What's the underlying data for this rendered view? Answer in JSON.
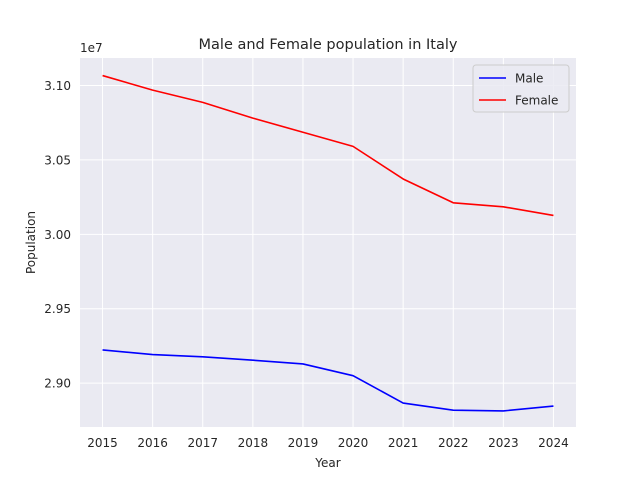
{
  "chart_data": {
    "type": "line",
    "title": "Male and Female population in Italy",
    "xlabel": "Year",
    "ylabel": "Population",
    "y_offset_label": "1e7",
    "x": [
      2015,
      2016,
      2017,
      2018,
      2019,
      2020,
      2021,
      2022,
      2023,
      2024
    ],
    "x_ticks": [
      "2015",
      "2016",
      "2017",
      "2018",
      "2019",
      "2020",
      "2021",
      "2022",
      "2023",
      "2024"
    ],
    "y_ticks": [
      {
        "value": 2.9,
        "label": "2.90"
      },
      {
        "value": 2.95,
        "label": "2.95"
      },
      {
        "value": 3.0,
        "label": "3.00"
      },
      {
        "value": 3.05,
        "label": "3.05"
      },
      {
        "value": 3.1,
        "label": "3.10"
      }
    ],
    "xlim": [
      2014.55,
      2024.45
    ],
    "ylim": [
      2.8705,
      3.1185
    ],
    "grid": true,
    "legend_position": "top-right",
    "series": [
      {
        "name": "Male",
        "color": "#0000ff",
        "values": [
          2.9223,
          2.9192,
          2.9177,
          2.9154,
          2.9129,
          2.905,
          2.8866,
          2.8818,
          2.8813,
          2.8846
        ]
      },
      {
        "name": "Female",
        "color": "#ff0000",
        "values": [
          3.1067,
          3.0969,
          3.0887,
          3.0781,
          3.0686,
          3.0591,
          3.0372,
          3.0212,
          3.0185,
          3.0127
        ]
      }
    ]
  }
}
